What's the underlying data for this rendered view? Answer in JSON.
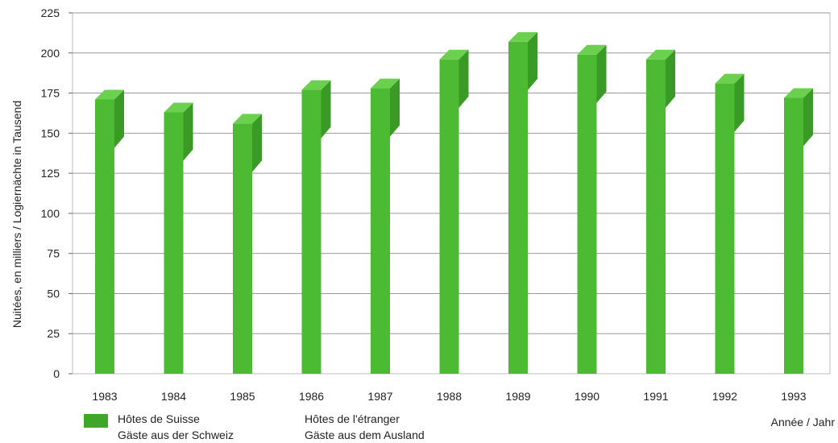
{
  "chart_data": {
    "type": "bar",
    "ylabel": "Nuitées, en milliers / Logiernächte in Tausend",
    "xlabel": "Année / Jahr",
    "ylim": [
      0,
      225
    ],
    "yticks": [
      0,
      25,
      50,
      75,
      100,
      125,
      150,
      175,
      200,
      225
    ],
    "grid": true,
    "categories": [
      "1983",
      "1984",
      "1985",
      "1986",
      "1987",
      "1988",
      "1989",
      "1990",
      "1991",
      "1992",
      "1993"
    ],
    "series": [
      {
        "name": "Hôtes de Suisse / Gäste aus der Schweiz",
        "values": [
          171,
          163,
          156,
          177,
          178,
          196,
          207,
          199,
          196,
          181,
          172
        ]
      }
    ],
    "legend": [
      {
        "line1": "Hôtes de Suisse",
        "line2": "Gäste aus der Schweiz",
        "color": "#3fa62a"
      },
      {
        "line1": "Hôtes de l'étranger",
        "line2": "Gäste aus dem Ausland",
        "color": "#ffffff"
      }
    ],
    "bar_color": "#4cbb33",
    "bar_shade_color": "#3a9a26",
    "bar_top_color": "#6cd04f"
  }
}
